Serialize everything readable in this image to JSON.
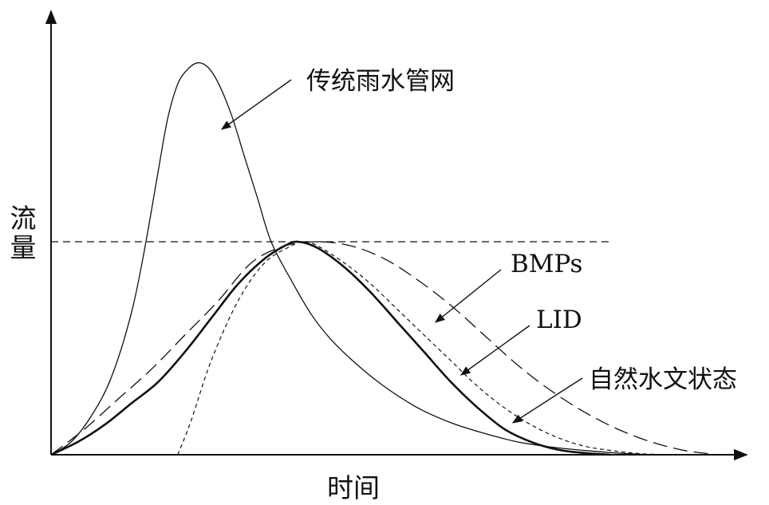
{
  "chart_data": {
    "type": "line",
    "title": "",
    "xlabel": "时间",
    "ylabel": "流量",
    "xlim": [
      0,
      100
    ],
    "ylim": [
      0,
      100
    ],
    "grid": false,
    "reference_line": {
      "style": "dashed",
      "y": 50
    },
    "series": [
      {
        "name": "传统雨水管网",
        "style": "thin-solid",
        "x": [
          0,
          3,
          6,
          9,
          12,
          14,
          16,
          17.5,
          19,
          20.5,
          22,
          23.5,
          25,
          27,
          29,
          31,
          33,
          36,
          39,
          42,
          46,
          50,
          55,
          60,
          65,
          70,
          75,
          80,
          85,
          90
        ],
        "y": [
          0,
          3,
          9,
          18,
          33,
          48,
          66,
          79,
          87,
          90.5,
          92,
          91,
          87.5,
          80,
          70,
          60,
          50,
          41,
          33,
          27,
          21,
          16,
          11,
          7.5,
          5,
          3,
          1.8,
          1,
          0.4,
          0
        ]
      },
      {
        "name": "BMPs",
        "style": "long-dash",
        "x": [
          0,
          5,
          10,
          15,
          20,
          25,
          30,
          35,
          40,
          45,
          50,
          55,
          60,
          65,
          70,
          75,
          80,
          85,
          90,
          95,
          100
        ],
        "y": [
          0,
          6,
          13,
          20,
          28,
          36,
          45,
          49,
          50,
          49,
          46,
          41,
          35,
          28,
          21,
          15,
          10,
          6,
          3,
          1,
          0
        ]
      },
      {
        "name": "LID",
        "style": "short-dash",
        "x": [
          19,
          21,
          24,
          28,
          32,
          36,
          38,
          40,
          44,
          48,
          52,
          56,
          60,
          64,
          68,
          72,
          76,
          80,
          84,
          88,
          92
        ],
        "y": [
          0,
          8,
          22,
          36,
          45,
          49,
          50,
          49,
          45,
          40,
          34,
          28,
          22,
          16,
          11,
          7,
          4,
          2,
          1,
          0.3,
          0
        ]
      },
      {
        "name": "自然水文状态",
        "style": "thick-solid",
        "x": [
          0,
          4,
          8,
          12,
          16,
          20,
          24,
          28,
          32,
          35,
          37,
          40,
          44,
          48,
          52,
          56,
          60,
          64,
          68,
          72,
          76,
          80,
          84
        ],
        "y": [
          0,
          3,
          7,
          12,
          17,
          24,
          32,
          40,
          46,
          49,
          50,
          48.5,
          44,
          38,
          31,
          24,
          17,
          11,
          6,
          3,
          1.2,
          0.4,
          0
        ]
      }
    ]
  }
}
